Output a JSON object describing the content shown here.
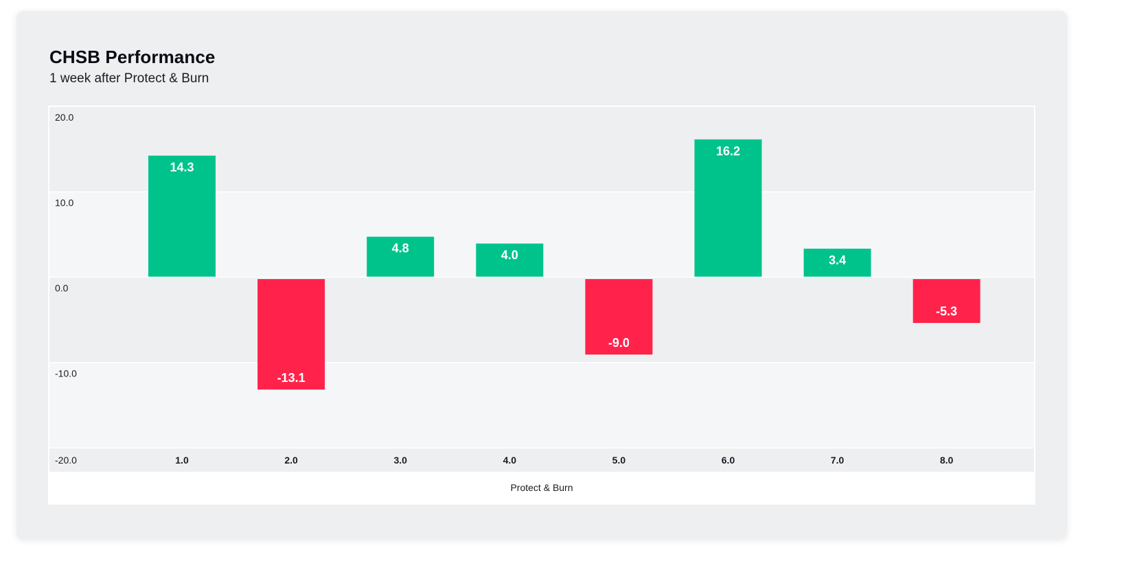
{
  "chart_data": {
    "type": "bar",
    "title": "CHSB Performance",
    "subtitle": "1 week after Protect & Burn",
    "xlabel": "Protect & Burn",
    "ylabel": "",
    "categories": [
      "1.0",
      "2.0",
      "3.0",
      "4.0",
      "5.0",
      "6.0",
      "7.0",
      "8.0"
    ],
    "values": [
      14.3,
      -13.1,
      4.8,
      4.0,
      -9.0,
      16.2,
      3.4,
      -5.3
    ],
    "data_labels": [
      "14.3",
      "-13.1",
      "4.8",
      "4.0",
      "-9.0",
      "16.2",
      "3.4",
      "-5.3"
    ],
    "ylim": [
      -20,
      20
    ],
    "yticks": [
      20,
      10,
      0,
      -10,
      -20
    ],
    "ytick_labels": [
      "20.0",
      "10.0",
      "0.0",
      "-10.0",
      "-20.0"
    ],
    "grid": true,
    "legend": "none",
    "colors": {
      "positive": "#00c38c",
      "negative": "#ff234b",
      "band_dark": "#eeeff1",
      "band_light": "#f5f6f8",
      "axis_strip": "#eeeff1"
    }
  }
}
